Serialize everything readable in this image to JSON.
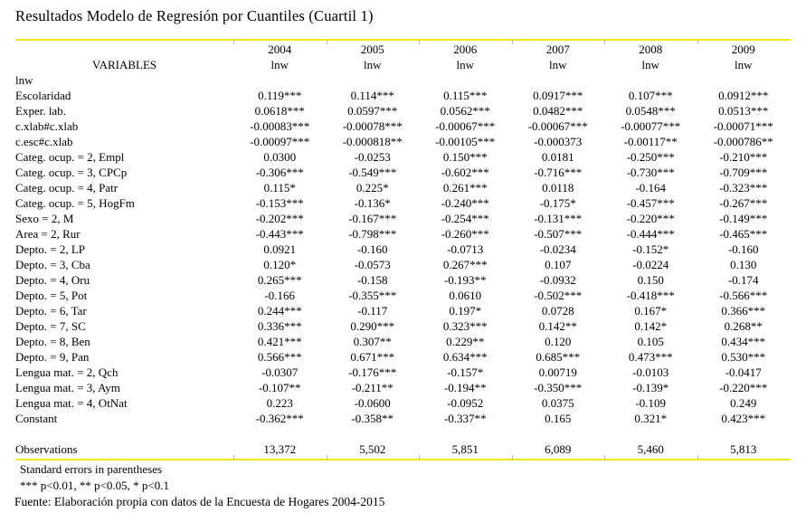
{
  "page": {
    "title": "Resultados Modelo de Regresión por Cuantiles (Cuartil 1)"
  },
  "table": {
    "variables_header": "VARIABLES",
    "year_headers": [
      "2004",
      "2005",
      "2006",
      "2007",
      "2008",
      "2009"
    ],
    "dep_var_label": "lnw",
    "depvar_row_label": "lnw",
    "rows": [
      {
        "label": "Escolaridad",
        "values": [
          "0.119***",
          "0.114***",
          "0.115***",
          "0.0917***",
          "0.107***",
          "0.0912***"
        ]
      },
      {
        "label": "Exper. lab.",
        "values": [
          "0.0618***",
          "0.0597***",
          "0.0562***",
          "0.0482***",
          "0.0548***",
          "0.0513***"
        ]
      },
      {
        "label": "c.xlab#c.xlab",
        "values": [
          "-0.00083***",
          "-0.00078***",
          "-0.00067***",
          "-0.00067***",
          "-0.00077***",
          "-0.00071***"
        ]
      },
      {
        "label": "c.esc#c.xlab",
        "values": [
          "-0.00097***",
          "-0.000818**",
          "-0.00105***",
          "-0.000373",
          "-0.00117**",
          "-0.000786**"
        ]
      },
      {
        "label": "Categ. ocup. = 2, Empl",
        "values": [
          "0.0300",
          "-0.0253",
          "0.150***",
          "0.0181",
          "-0.250***",
          "-0.210***"
        ]
      },
      {
        "label": "Categ. ocup. = 3, CPCp",
        "values": [
          "-0.306***",
          "-0.549***",
          "-0.602***",
          "-0.716***",
          "-0.730***",
          "-0.709***"
        ]
      },
      {
        "label": "Categ. ocup. = 4, Patr",
        "values": [
          "0.115*",
          "0.225*",
          "0.261***",
          "0.0118",
          "-0.164",
          "-0.323***"
        ]
      },
      {
        "label": "Categ. ocup. = 5, HogFm",
        "values": [
          "-0.153***",
          "-0.136*",
          "-0.240***",
          "-0.175*",
          "-0.457***",
          "-0.267***"
        ]
      },
      {
        "label": "Sexo = 2, M",
        "values": [
          "-0.202***",
          "-0.167***",
          "-0.254***",
          "-0.131***",
          "-0.220***",
          "-0.149***"
        ]
      },
      {
        "label": "Area = 2, Rur",
        "values": [
          "-0.443***",
          "-0.798***",
          "-0.260***",
          "-0.507***",
          "-0.444***",
          "-0.465***"
        ]
      },
      {
        "label": "Depto. = 2, LP",
        "values": [
          "0.0921",
          "-0.160",
          "-0.0713",
          "-0.0234",
          "-0.152*",
          "-0.160"
        ]
      },
      {
        "label": "Depto. = 3, Cba",
        "values": [
          "0.120*",
          "-0.0573",
          "0.267***",
          "0.107",
          "-0.0224",
          "0.130"
        ]
      },
      {
        "label": "Depto. = 4, Oru",
        "values": [
          "0.265***",
          "-0.158",
          "-0.193**",
          "-0.0932",
          "0.150",
          "-0.174"
        ]
      },
      {
        "label": "Depto. = 5, Pot",
        "values": [
          "-0.166",
          "-0.355***",
          "0.0610",
          "-0.502***",
          "-0.418***",
          "-0.566***"
        ]
      },
      {
        "label": "Depto. = 6, Tar",
        "values": [
          "0.244***",
          "-0.117",
          "0.197*",
          "0.0728",
          "0.167*",
          "0.366***"
        ]
      },
      {
        "label": "Depto. = 7, SC",
        "values": [
          "0.336***",
          "0.290***",
          "0.323***",
          "0.142**",
          "0.142*",
          "0.268**"
        ]
      },
      {
        "label": "Depto. = 8, Ben",
        "values": [
          "0.421***",
          "0.307**",
          "0.229**",
          "0.120",
          "0.105",
          "0.434***"
        ]
      },
      {
        "label": "Depto. = 9, Pan",
        "values": [
          "0.566***",
          "0.671***",
          "0.634***",
          "0.685***",
          "0.473***",
          "0.530***"
        ]
      },
      {
        "label": "Lengua mat. = 2, Qch",
        "values": [
          "-0.0307",
          "-0.176***",
          "-0.157*",
          "0.00719",
          "-0.0103",
          "-0.0417"
        ]
      },
      {
        "label": "Lengua mat. = 3, Aym",
        "values": [
          "-0.107**",
          "-0.211**",
          "-0.194**",
          "-0.350***",
          "-0.139*",
          "-0.220***"
        ]
      },
      {
        "label": "Lengua mat. = 4, OtNat",
        "values": [
          "0.223",
          "-0.0600",
          "-0.0952",
          "0.0375",
          "-0.109",
          "0.249"
        ]
      },
      {
        "label": "Constant",
        "values": [
          "-0.362***",
          "-0.358**",
          "-0.337**",
          "0.165",
          "0.321*",
          "0.423***"
        ]
      }
    ],
    "observations": {
      "label": "Observations",
      "values": [
        "13,372",
        "5,502",
        "5,851",
        "6,089",
        "5,460",
        "5,813"
      ]
    }
  },
  "notes": {
    "line1": "Standard errors in parentheses",
    "line2": "*** p<0.01, ** p<0.05, * p<0.1"
  },
  "source_line": "Fuente: Elaboración propia con datos de la Encuesta de Hogares 2004-2015",
  "colors": {
    "rule_yellow": "#f2e816",
    "text": "#000000",
    "background": "#ffffff"
  }
}
